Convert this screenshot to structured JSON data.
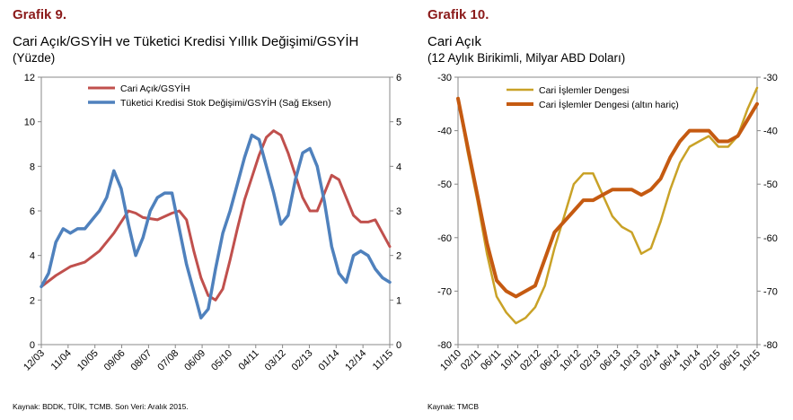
{
  "panels": [
    {
      "heading": "Grafik 9.",
      "title_line1": "Cari Açık/GSYİH ve Tüketici Kredisi Yıllık Değişimi/GSYİH",
      "title_line2": "(Yüzde)",
      "source": "Kaynak: BDDK, TÜİK, TCMB.  Son Veri: Aralık 2015."
    },
    {
      "heading": "Grafik 10.",
      "title_line1": "Cari Açık",
      "title_line2": "(12 Aylık Birikimli, Milyar ABD Doları)",
      "source": "Kaynak: TMCB"
    }
  ],
  "chart_data": [
    {
      "type": "line",
      "title": "Cari Açık/GSYİH ve Tüketici Kredisi Yıllık Değişimi/GSYİH",
      "subtitle": "(Yüzde)",
      "x_tick_labels": [
        "12/03",
        "11/04",
        "10/05",
        "09/06",
        "08/07",
        "07/08",
        "06/09",
        "05/10",
        "04/11",
        "03/12",
        "02/13",
        "01/14",
        "12/14",
        "11/15"
      ],
      "x_range": [
        "2003-12",
        "2015-12"
      ],
      "ylim_left": [
        0,
        12
      ],
      "y_ticks_left": [
        0,
        2,
        4,
        6,
        8,
        10,
        12
      ],
      "ylim_right": [
        0,
        6
      ],
      "y_ticks_right": [
        0,
        1,
        2,
        3,
        4,
        5,
        6
      ],
      "legend_position": "top-center",
      "grid": false,
      "series": [
        {
          "name": "Cari Açık/GSYİH",
          "axis": "left",
          "color": "#c0504d",
          "points": [
            [
              "2003-12",
              2.6
            ],
            [
              "2004-06",
              3.1
            ],
            [
              "2004-12",
              3.5
            ],
            [
              "2005-06",
              3.7
            ],
            [
              "2005-12",
              4.2
            ],
            [
              "2006-06",
              5.0
            ],
            [
              "2006-12",
              6.0
            ],
            [
              "2007-03",
              5.9
            ],
            [
              "2007-06",
              5.7
            ],
            [
              "2007-12",
              5.6
            ],
            [
              "2008-06",
              5.9
            ],
            [
              "2008-09",
              6.0
            ],
            [
              "2008-12",
              5.6
            ],
            [
              "2009-03",
              4.2
            ],
            [
              "2009-06",
              3.0
            ],
            [
              "2009-09",
              2.2
            ],
            [
              "2009-12",
              2.0
            ],
            [
              "2010-03",
              2.5
            ],
            [
              "2010-06",
              3.8
            ],
            [
              "2010-09",
              5.2
            ],
            [
              "2010-12",
              6.5
            ],
            [
              "2011-03",
              7.5
            ],
            [
              "2011-06",
              8.5
            ],
            [
              "2011-09",
              9.3
            ],
            [
              "2011-12",
              9.6
            ],
            [
              "2012-03",
              9.4
            ],
            [
              "2012-06",
              8.6
            ],
            [
              "2012-09",
              7.6
            ],
            [
              "2012-12",
              6.6
            ],
            [
              "2013-03",
              6.0
            ],
            [
              "2013-06",
              6.0
            ],
            [
              "2013-09",
              6.8
            ],
            [
              "2013-12",
              7.6
            ],
            [
              "2014-03",
              7.4
            ],
            [
              "2014-06",
              6.6
            ],
            [
              "2014-09",
              5.8
            ],
            [
              "2014-12",
              5.5
            ],
            [
              "2015-03",
              5.5
            ],
            [
              "2015-06",
              5.6
            ],
            [
              "2015-09",
              5.0
            ],
            [
              "2015-12",
              4.4
            ]
          ]
        },
        {
          "name": "Tüketici Kredisi Stok Değişimi/GSYİH (Sağ Eksen)",
          "axis": "right",
          "color": "#4f81bd",
          "points": [
            [
              "2003-12",
              1.3
            ],
            [
              "2004-03",
              1.6
            ],
            [
              "2004-06",
              2.3
            ],
            [
              "2004-09",
              2.6
            ],
            [
              "2004-12",
              2.5
            ],
            [
              "2005-03",
              2.6
            ],
            [
              "2005-06",
              2.6
            ],
            [
              "2005-09",
              2.8
            ],
            [
              "2005-12",
              3.0
            ],
            [
              "2006-03",
              3.3
            ],
            [
              "2006-06",
              3.9
            ],
            [
              "2006-09",
              3.5
            ],
            [
              "2006-12",
              2.7
            ],
            [
              "2007-03",
              2.0
            ],
            [
              "2007-06",
              2.4
            ],
            [
              "2007-09",
              3.0
            ],
            [
              "2007-12",
              3.3
            ],
            [
              "2008-03",
              3.4
            ],
            [
              "2008-06",
              3.4
            ],
            [
              "2008-09",
              2.6
            ],
            [
              "2008-12",
              1.8
            ],
            [
              "2009-03",
              1.2
            ],
            [
              "2009-06",
              0.6
            ],
            [
              "2009-09",
              0.8
            ],
            [
              "2009-12",
              1.7
            ],
            [
              "2010-03",
              2.5
            ],
            [
              "2010-06",
              3.0
            ],
            [
              "2010-09",
              3.6
            ],
            [
              "2010-12",
              4.2
            ],
            [
              "2011-03",
              4.7
            ],
            [
              "2011-06",
              4.6
            ],
            [
              "2011-09",
              4.0
            ],
            [
              "2011-12",
              3.4
            ],
            [
              "2012-03",
              2.7
            ],
            [
              "2012-06",
              2.9
            ],
            [
              "2012-09",
              3.7
            ],
            [
              "2012-12",
              4.3
            ],
            [
              "2013-03",
              4.4
            ],
            [
              "2013-06",
              4.0
            ],
            [
              "2013-09",
              3.2
            ],
            [
              "2013-12",
              2.2
            ],
            [
              "2014-03",
              1.6
            ],
            [
              "2014-06",
              1.4
            ],
            [
              "2014-09",
              2.0
            ],
            [
              "2014-12",
              2.1
            ],
            [
              "2015-03",
              2.0
            ],
            [
              "2015-06",
              1.7
            ],
            [
              "2015-09",
              1.5
            ],
            [
              "2015-12",
              1.4
            ]
          ]
        }
      ]
    },
    {
      "type": "line",
      "title": "Cari Açık",
      "subtitle": "(12 Aylık Birikimli, Milyar ABD Doları)",
      "x_tick_labels": [
        "10/10",
        "02/11",
        "06/11",
        "10/11",
        "02/12",
        "06/12",
        "10/12",
        "02/13",
        "06/13",
        "10/13",
        "02/14",
        "06/14",
        "10/14",
        "02/15",
        "06/15",
        "10/15"
      ],
      "x_range": [
        "2010-10",
        "2015-12"
      ],
      "ylim_left": [
        -80,
        -30
      ],
      "y_ticks_left": [
        -80,
        -70,
        -60,
        -50,
        -40,
        -30
      ],
      "ylim_right": [
        -80,
        -30
      ],
      "y_ticks_right": [
        -80,
        -70,
        -60,
        -50,
        -40,
        -30
      ],
      "legend_position": "top-center",
      "grid": false,
      "series": [
        {
          "name": "Cari İşlemler Dengesi",
          "axis": "left",
          "color": "#c9a227",
          "points": [
            [
              "2010-10",
              -34
            ],
            [
              "2010-12",
              -44
            ],
            [
              "2011-02",
              -53
            ],
            [
              "2011-04",
              -63
            ],
            [
              "2011-06",
              -71
            ],
            [
              "2011-08",
              -74
            ],
            [
              "2011-10",
              -76
            ],
            [
              "2011-12",
              -75
            ],
            [
              "2012-02",
              -73
            ],
            [
              "2012-04",
              -69
            ],
            [
              "2012-06",
              -62
            ],
            [
              "2012-08",
              -56
            ],
            [
              "2012-10",
              -50
            ],
            [
              "2012-12",
              -48
            ],
            [
              "2013-02",
              -48
            ],
            [
              "2013-04",
              -52
            ],
            [
              "2013-06",
              -56
            ],
            [
              "2013-08",
              -58
            ],
            [
              "2013-10",
              -59
            ],
            [
              "2013-12",
              -63
            ],
            [
              "2014-02",
              -62
            ],
            [
              "2014-04",
              -57
            ],
            [
              "2014-06",
              -51
            ],
            [
              "2014-08",
              -46
            ],
            [
              "2014-10",
              -43
            ],
            [
              "2014-12",
              -42
            ],
            [
              "2015-02",
              -41
            ],
            [
              "2015-04",
              -43
            ],
            [
              "2015-06",
              -43
            ],
            [
              "2015-08",
              -41
            ],
            [
              "2015-10",
              -36
            ],
            [
              "2015-12",
              -32
            ]
          ]
        },
        {
          "name": "Cari İşlemler Dengesi (altın hariç)",
          "axis": "left",
          "color": "#c55a11",
          "points": [
            [
              "2010-10",
              -34
            ],
            [
              "2010-12",
              -43
            ],
            [
              "2011-02",
              -52
            ],
            [
              "2011-04",
              -61
            ],
            [
              "2011-06",
              -68
            ],
            [
              "2011-08",
              -70
            ],
            [
              "2011-10",
              -71
            ],
            [
              "2011-12",
              -70
            ],
            [
              "2012-02",
              -69
            ],
            [
              "2012-04",
              -64
            ],
            [
              "2012-06",
              -59
            ],
            [
              "2012-08",
              -57
            ],
            [
              "2012-10",
              -55
            ],
            [
              "2012-12",
              -53
            ],
            [
              "2013-02",
              -53
            ],
            [
              "2013-04",
              -52
            ],
            [
              "2013-06",
              -51
            ],
            [
              "2013-08",
              -51
            ],
            [
              "2013-10",
              -51
            ],
            [
              "2013-12",
              -52
            ],
            [
              "2014-02",
              -51
            ],
            [
              "2014-04",
              -49
            ],
            [
              "2014-06",
              -45
            ],
            [
              "2014-08",
              -42
            ],
            [
              "2014-10",
              -40
            ],
            [
              "2014-12",
              -40
            ],
            [
              "2015-02",
              -40
            ],
            [
              "2015-04",
              -42
            ],
            [
              "2015-06",
              -42
            ],
            [
              "2015-08",
              -41
            ],
            [
              "2015-10",
              -38
            ],
            [
              "2015-12",
              -35
            ]
          ]
        }
      ]
    }
  ]
}
